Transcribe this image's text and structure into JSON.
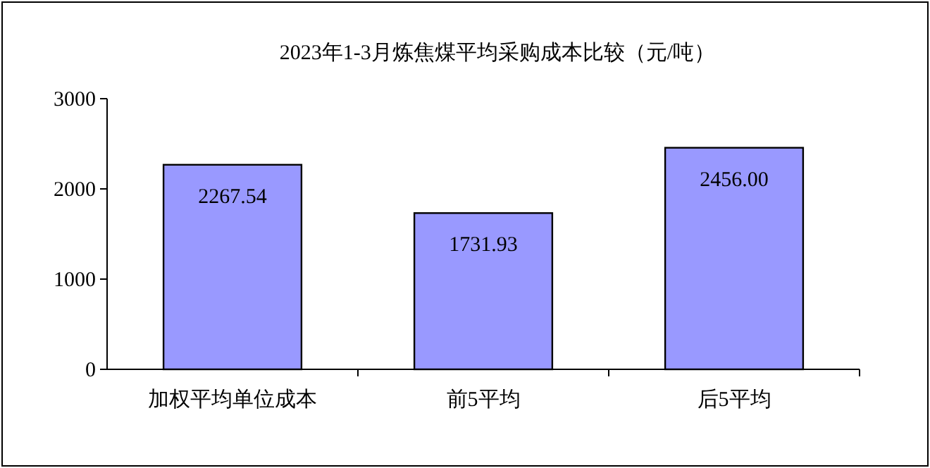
{
  "chart_data": {
    "type": "bar",
    "title": "2023年1-3月炼焦煤平均采购成本比较（元/吨）",
    "categories": [
      "加权平均单位成本",
      "前5平均",
      "后5平均"
    ],
    "values": [
      2267.54,
      1731.93,
      2456.0
    ],
    "value_labels": [
      "2267.54",
      "1731.93",
      "2456.00"
    ],
    "color": "#9999ff",
    "ylim": [
      0,
      3000
    ],
    "yticks": [
      0,
      1000,
      2000,
      3000
    ],
    "grid": false
  }
}
